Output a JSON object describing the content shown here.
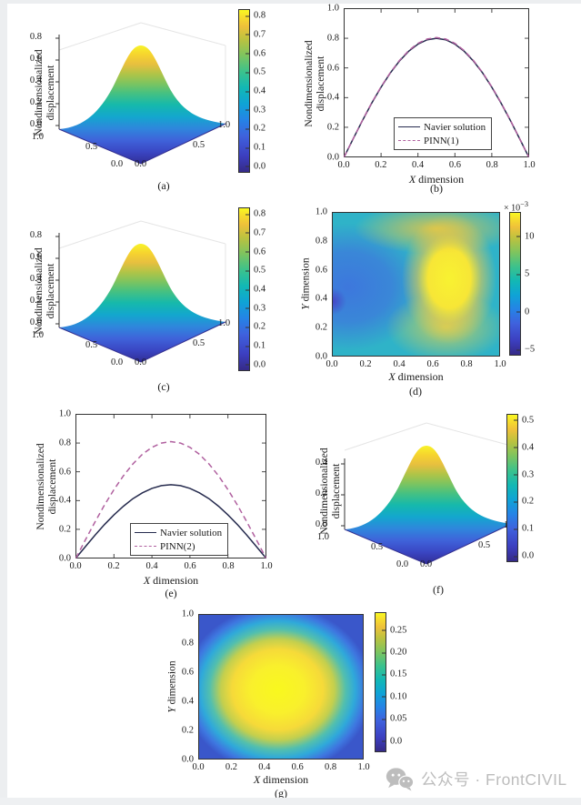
{
  "watermark": {
    "icon": "wechat-icon",
    "text": "公众号 · FrontCIVIL"
  },
  "chart_data": [
    {
      "id": "a",
      "type": "surface",
      "caption": "(a)",
      "zlabel": "Nondimensionalized displacement",
      "surface": {
        "shape": "bell sin(pi*x)*sin(pi*y)",
        "peak_value": 0.8,
        "peak_at": [
          0.5,
          0.5
        ],
        "base_value": 0.0
      },
      "x_range": [
        0,
        1
      ],
      "y_range": [
        0,
        1
      ],
      "z_range": [
        0,
        0.8
      ],
      "z_ticks": [
        "0.8",
        "0.6",
        "0.4",
        "0.2",
        "0.0"
      ],
      "left_axis_ticks": [
        "1.0",
        "0.5",
        "0.0"
      ],
      "right_axis_ticks": [
        "0.0",
        "0.5",
        "1.0"
      ],
      "colormap": "parula",
      "colorbar": {
        "values": [
          0,
          0.1,
          0.2,
          0.3,
          0.4,
          0.5,
          0.6,
          0.7,
          0.8
        ],
        "labels": [
          "0.0",
          "0.1",
          "0.2",
          "0.3",
          "0.4",
          "0.5",
          "0.6",
          "0.7",
          "0.8"
        ],
        "range": [
          -0.035,
          0.835
        ]
      }
    },
    {
      "id": "b",
      "type": "line",
      "caption": "(b)",
      "xlabel_var": "X",
      "xlabel_rest": " dimension",
      "ylabel": "Nondimensionalized displacement",
      "xlim": [
        0,
        1
      ],
      "ylim": [
        0,
        1
      ],
      "grid": false,
      "legend_position": "lower center",
      "xtick_values": [
        0,
        0.2,
        0.4,
        0.6,
        0.8,
        1
      ],
      "xtick_labels": [
        "0.0",
        "0.2",
        "0.4",
        "0.6",
        "0.8",
        "1.0"
      ],
      "ytick_values": [
        0,
        0.2,
        0.4,
        0.6,
        0.8,
        1
      ],
      "ytick_labels": [
        "0.0",
        "0.2",
        "0.4",
        "0.6",
        "0.8",
        "1.0"
      ],
      "x": [
        0,
        0.05,
        0.1,
        0.15,
        0.2,
        0.25,
        0.3,
        0.35,
        0.4,
        0.45,
        0.5,
        0.55,
        0.6,
        0.65,
        0.7,
        0.75,
        0.8,
        0.85,
        0.9,
        0.95,
        1
      ],
      "series": [
        {
          "name": "Navier solution",
          "line": "solid",
          "color": "#262b4e",
          "values": [
            0,
            0.125,
            0.247,
            0.363,
            0.47,
            0.566,
            0.647,
            0.713,
            0.761,
            0.79,
            0.8,
            0.79,
            0.761,
            0.713,
            0.647,
            0.566,
            0.47,
            0.363,
            0.247,
            0.125,
            0
          ]
        },
        {
          "name": "PINN(1)",
          "line": "dashed",
          "color": "#b0609f",
          "values": [
            0,
            0.126,
            0.249,
            0.366,
            0.473,
            0.569,
            0.651,
            0.717,
            0.766,
            0.795,
            0.805,
            0.795,
            0.766,
            0.717,
            0.651,
            0.569,
            0.473,
            0.366,
            0.249,
            0.126,
            0
          ]
        }
      ]
    },
    {
      "id": "c",
      "type": "surface",
      "caption": "(c)",
      "zlabel": "Nondimensionalized displacement",
      "surface": {
        "shape": "bell sin(pi*x)*sin(pi*y)",
        "peak_value": 0.8,
        "peak_at": [
          0.5,
          0.5
        ],
        "base_value": 0.0
      },
      "x_range": [
        0,
        1
      ],
      "y_range": [
        0,
        1
      ],
      "z_range": [
        0,
        0.8
      ],
      "z_ticks": [
        "0.8",
        "0.6",
        "0.4",
        "0.2",
        "0.0"
      ],
      "left_axis_ticks": [
        "1.0",
        "0.5",
        "0.0"
      ],
      "right_axis_ticks": [
        "0.0",
        "0.5",
        "1.0"
      ],
      "colormap": "parula",
      "colorbar": {
        "values": [
          0,
          0.1,
          0.2,
          0.3,
          0.4,
          0.5,
          0.6,
          0.7,
          0.8
        ],
        "labels": [
          "0.0",
          "0.1",
          "0.2",
          "0.3",
          "0.4",
          "0.5",
          "0.6",
          "0.7",
          "0.8"
        ],
        "range": [
          -0.035,
          0.835
        ]
      }
    },
    {
      "id": "d",
      "type": "heatmap",
      "caption": "(d)",
      "xlabel_var": "X",
      "xlabel_rest": " dimension",
      "ylabel_var": "Y",
      "ylabel_rest": " dimension",
      "xlim": [
        0,
        1
      ],
      "ylim": [
        0,
        1
      ],
      "xtick_values": [
        0,
        0.2,
        0.4,
        0.6,
        0.8,
        1
      ],
      "xtick_labels": [
        "0.0",
        "0.2",
        "0.4",
        "0.6",
        "0.8",
        "1.0"
      ],
      "ytick_values": [
        0,
        0.2,
        0.4,
        0.6,
        0.8,
        1
      ],
      "ytick_labels": [
        "0.0",
        "0.2",
        "0.4",
        "0.6",
        "0.8",
        "1.0"
      ],
      "colormap": "parula",
      "field": {
        "background_level": "≈3e-3 (teal)",
        "max": "≈13e-3 yellow region x≈0.5–0.9, y≈0.15–0.9, brightest near (0.7,0.7)",
        "low": "≈0 blue region x≈0.0–0.35, y≈0.3–0.7",
        "min": "≈−5e-3 at left edge y≈0.38"
      },
      "colorbar": {
        "values": [
          -5,
          0,
          5,
          10
        ],
        "labels": [
          "−5",
          "0",
          "5",
          "10"
        ],
        "range": [
          -5.8,
          13.2
        ],
        "multiplier": "× 10",
        "exponent": "−3"
      }
    },
    {
      "id": "e",
      "type": "line",
      "caption": "(e)",
      "xlabel_var": "X",
      "xlabel_rest": " dimension",
      "ylabel": "Nondimensionalized displacement",
      "xlim": [
        0,
        1
      ],
      "ylim": [
        0,
        1
      ],
      "grid": false,
      "legend_position": "lower center",
      "xtick_values": [
        0,
        0.2,
        0.4,
        0.6,
        0.8,
        1
      ],
      "xtick_labels": [
        "0.0",
        "0.2",
        "0.4",
        "0.6",
        "0.8",
        "1.0"
      ],
      "ytick_values": [
        0,
        0.2,
        0.4,
        0.6,
        0.8,
        1
      ],
      "ytick_labels": [
        "0.0",
        "0.2",
        "0.4",
        "0.6",
        "0.8",
        "1.0"
      ],
      "x": [
        0,
        0.05,
        0.1,
        0.15,
        0.2,
        0.25,
        0.3,
        0.35,
        0.4,
        0.45,
        0.5,
        0.55,
        0.6,
        0.65,
        0.7,
        0.75,
        0.8,
        0.85,
        0.9,
        0.95,
        1
      ],
      "series": [
        {
          "name": "Navier solution",
          "line": "solid",
          "color": "#262b4e",
          "values": [
            0,
            0.08,
            0.158,
            0.232,
            0.3,
            0.361,
            0.413,
            0.454,
            0.485,
            0.504,
            0.51,
            0.504,
            0.485,
            0.454,
            0.413,
            0.361,
            0.3,
            0.232,
            0.158,
            0.08,
            0
          ]
        },
        {
          "name": "PINN(2)",
          "line": "dashed",
          "color": "#b0609f",
          "values": [
            0,
            0.127,
            0.25,
            0.368,
            0.476,
            0.573,
            0.655,
            0.722,
            0.77,
            0.8,
            0.81,
            0.8,
            0.77,
            0.722,
            0.655,
            0.573,
            0.476,
            0.368,
            0.25,
            0.127,
            0
          ]
        }
      ]
    },
    {
      "id": "f",
      "type": "surface",
      "caption": "(f)",
      "zlabel": "Nondimensionalized displacement",
      "surface": {
        "shape": "bell sin(pi*x)*sin(pi*y)",
        "peak_value": 0.5,
        "peak_at": [
          0.5,
          0.5
        ],
        "base_value": 0.0
      },
      "x_range": [
        0,
        1
      ],
      "y_range": [
        0,
        1
      ],
      "z_range": [
        0,
        0.5
      ],
      "z_ticks": [
        "0.4",
        "0.2",
        "0.0"
      ],
      "left_axis_ticks": [
        "1.0",
        "0.5",
        "0.0"
      ],
      "right_axis_ticks": [
        "0.0",
        "0.5",
        "1.0"
      ],
      "colormap": "parula",
      "colorbar": {
        "values": [
          0,
          0.1,
          0.2,
          0.3,
          0.4,
          0.5
        ],
        "labels": [
          "0.0",
          "0.1",
          "0.2",
          "0.3",
          "0.4",
          "0.5"
        ],
        "range": [
          -0.022,
          0.522
        ]
      }
    },
    {
      "id": "g",
      "type": "heatmap",
      "caption": "(g)",
      "xlabel_var": "X",
      "xlabel_rest": " dimension",
      "ylabel_var": "Y",
      "ylabel_rest": " dimension",
      "xlim": [
        0,
        1
      ],
      "ylim": [
        0,
        1
      ],
      "xtick_values": [
        0,
        0.2,
        0.4,
        0.6,
        0.8,
        1
      ],
      "xtick_labels": [
        "0.0",
        "0.2",
        "0.4",
        "0.6",
        "0.8",
        "1.0"
      ],
      "ytick_values": [
        0,
        0.2,
        0.4,
        0.6,
        0.8,
        1
      ],
      "ytick_labels": [
        "0.0",
        "0.2",
        "0.4",
        "0.6",
        "0.8",
        "1.0"
      ],
      "colormap": "parula",
      "field": {
        "max": "≈0.29 yellow blob centered near (0.5,0.45)",
        "edges": "≈0 blue at domain boundary"
      },
      "colorbar": {
        "values": [
          0,
          0.05,
          0.1,
          0.15,
          0.2,
          0.25
        ],
        "labels": [
          "0.0",
          "0.05",
          "0.10",
          "0.15",
          "0.20",
          "0.25"
        ],
        "range": [
          -0.025,
          0.29
        ]
      }
    }
  ]
}
